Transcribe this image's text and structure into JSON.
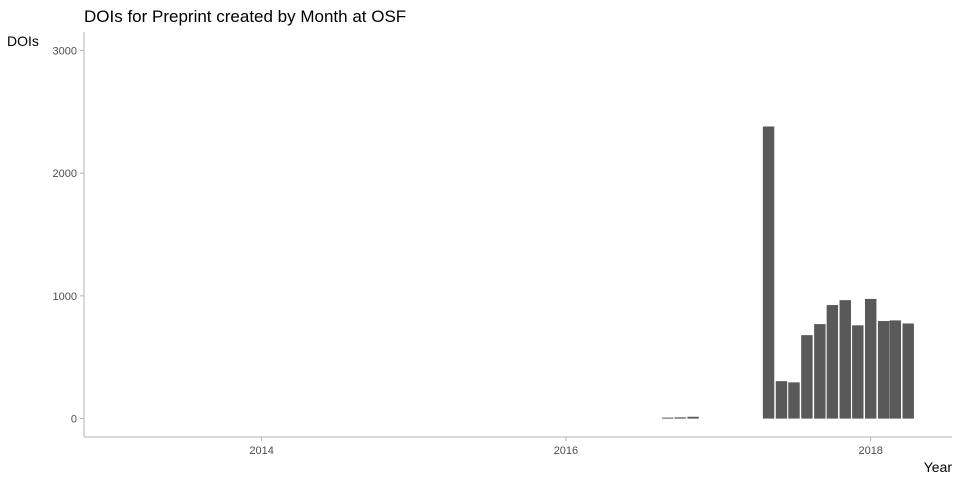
{
  "chart_data": {
    "type": "bar",
    "title": "DOIs for Preprint created by Month at OSF",
    "xlabel": "Year",
    "ylabel": "DOIs",
    "x_axis": {
      "type": "date",
      "range": [
        "2012-11-01",
        "2018-07-15"
      ],
      "tick_values": [
        "2014-01-01",
        "2016-01-01",
        "2018-01-01"
      ],
      "tick_labels": [
        "2014",
        "2016",
        "2018"
      ]
    },
    "y_axis": {
      "range": [
        -150,
        3150
      ],
      "tick_values": [
        0,
        1000,
        2000,
        3000
      ],
      "tick_labels": [
        "0",
        "1000",
        "2000",
        "3000"
      ]
    },
    "grid": false,
    "legend": "none",
    "bar_color": "#595959",
    "x": [
      "2016-09",
      "2016-10",
      "2016-11",
      "2017-05",
      "2017-06",
      "2017-07",
      "2017-08",
      "2017-09",
      "2017-10",
      "2017-11",
      "2017-12",
      "2018-01",
      "2018-02",
      "2018-03",
      "2018-04"
    ],
    "values": [
      8,
      10,
      15,
      2380,
      305,
      295,
      680,
      770,
      925,
      965,
      760,
      975,
      795,
      800,
      775
    ]
  }
}
